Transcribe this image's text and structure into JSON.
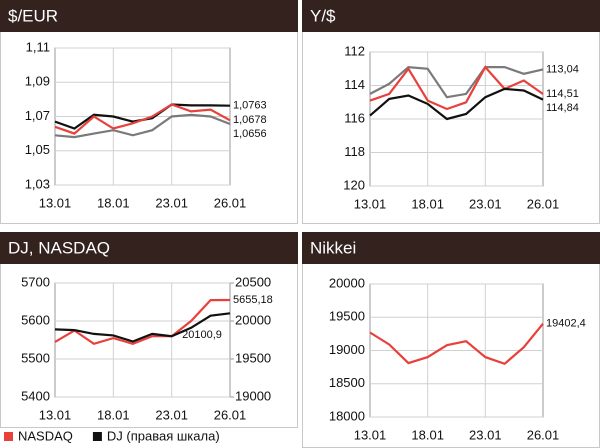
{
  "chart_data": [
    {
      "type": "line",
      "title": "$/EUR",
      "categories": [
        "13.01",
        null,
        null,
        "18.01",
        null,
        null,
        "23.01",
        null,
        null,
        "26.01"
      ],
      "ylim": [
        1.03,
        1.11
      ],
      "yticks": [
        {
          "value": 1.03,
          "label": "1,03"
        },
        {
          "value": 1.05,
          "label": "1,05"
        },
        {
          "value": 1.07,
          "label": "1,07"
        },
        {
          "value": 1.09,
          "label": "1,09"
        },
        {
          "value": 1.11,
          "label": "1,11"
        }
      ],
      "grid": true,
      "series": [
        {
          "color": "#111111",
          "values": [
            1.067,
            1.063,
            1.071,
            1.07,
            1.067,
            1.069,
            1.077,
            1.0765,
            1.0765,
            1.0763
          ],
          "value_labels": [
            null,
            null,
            null,
            null,
            null,
            null,
            null,
            null,
            null,
            "1,0763"
          ]
        },
        {
          "color": "#e8413c",
          "values": [
            1.064,
            1.06,
            1.07,
            1.063,
            1.066,
            1.07,
            1.077,
            1.073,
            1.074,
            1.0678
          ],
          "value_labels": [
            null,
            null,
            null,
            null,
            null,
            null,
            null,
            null,
            null,
            "1,0678"
          ]
        },
        {
          "color": "#7a7a7a",
          "values": [
            1.059,
            1.058,
            1.06,
            1.062,
            1.059,
            1.062,
            1.07,
            1.071,
            1.07,
            1.0656
          ],
          "value_labels": [
            null,
            null,
            null,
            null,
            null,
            null,
            null,
            null,
            null,
            "1,0656"
          ]
        }
      ]
    },
    {
      "type": "line",
      "title": "Y/$",
      "categories": [
        "13.01",
        null,
        null,
        "18.01",
        null,
        null,
        "23.01",
        null,
        null,
        "26.01"
      ],
      "ylim": [
        120,
        112
      ],
      "yticks": [
        112,
        114,
        116,
        118,
        120
      ],
      "grid": true,
      "series": [
        {
          "color": "#7a7a7a",
          "values": [
            114.5,
            113.9,
            112.9,
            113.0,
            114.7,
            114.5,
            112.9,
            112.9,
            113.3,
            113.04
          ],
          "value_labels": [
            null,
            null,
            null,
            null,
            null,
            null,
            null,
            null,
            null,
            "113,04"
          ]
        },
        {
          "color": "#e8413c",
          "values": [
            114.9,
            114.5,
            113.0,
            114.9,
            115.4,
            115.0,
            112.9,
            114.2,
            113.7,
            114.51
          ],
          "value_labels": [
            null,
            null,
            null,
            null,
            null,
            null,
            null,
            null,
            null,
            "114,51"
          ]
        },
        {
          "color": "#111111",
          "values": [
            115.8,
            114.8,
            114.6,
            115.1,
            116.0,
            115.7,
            114.7,
            114.2,
            114.3,
            114.84
          ],
          "value_labels": [
            null,
            null,
            null,
            null,
            null,
            null,
            null,
            null,
            null,
            "114,84"
          ]
        }
      ]
    },
    {
      "type": "line",
      "title": "DJ, NASDAQ",
      "categories": [
        "13.01",
        null,
        null,
        "18.01",
        null,
        null,
        "23.01",
        null,
        null,
        "26.01"
      ],
      "ylim": [
        5400,
        5700
      ],
      "yticks": [
        5400,
        5500,
        5600,
        5700
      ],
      "y2lim": [
        19000,
        20500
      ],
      "y2ticks": [
        19000,
        19500,
        20000,
        20500
      ],
      "grid": true,
      "legend": "bottom",
      "series": [
        {
          "name": "NASDAQ",
          "color": "#e8413c",
          "values": [
            5545,
            5575,
            5540,
            5555,
            5540,
            5560,
            5560,
            5600,
            5655,
            5655.18
          ],
          "value_labels": [
            null,
            null,
            null,
            null,
            null,
            null,
            null,
            null,
            null,
            "5655,18"
          ]
        },
        {
          "name": "DJ (правая шкала)",
          "color": "#111111",
          "axis": "y2",
          "values": [
            19890,
            19880,
            19830,
            19810,
            19730,
            19830,
            19800,
            19910,
            20070,
            20100.9
          ],
          "value_labels": [
            null,
            null,
            null,
            null,
            null,
            null,
            null,
            null,
            null,
            "20100,9"
          ]
        }
      ]
    },
    {
      "type": "line",
      "title": "Nikkei",
      "categories": [
        "13.01",
        null,
        null,
        "18.01",
        null,
        null,
        "23.01",
        null,
        null,
        "26.01"
      ],
      "ylim": [
        18000,
        20000
      ],
      "yticks": [
        18000,
        18500,
        19000,
        19500,
        20000
      ],
      "grid": true,
      "series": [
        {
          "color": "#e8413c",
          "values": [
            19270,
            19090,
            18810,
            18900,
            19080,
            19140,
            18900,
            18800,
            19050,
            19402.4
          ],
          "value_labels": [
            null,
            null,
            null,
            null,
            null,
            null,
            null,
            null,
            null,
            "19402,4"
          ]
        }
      ]
    }
  ]
}
